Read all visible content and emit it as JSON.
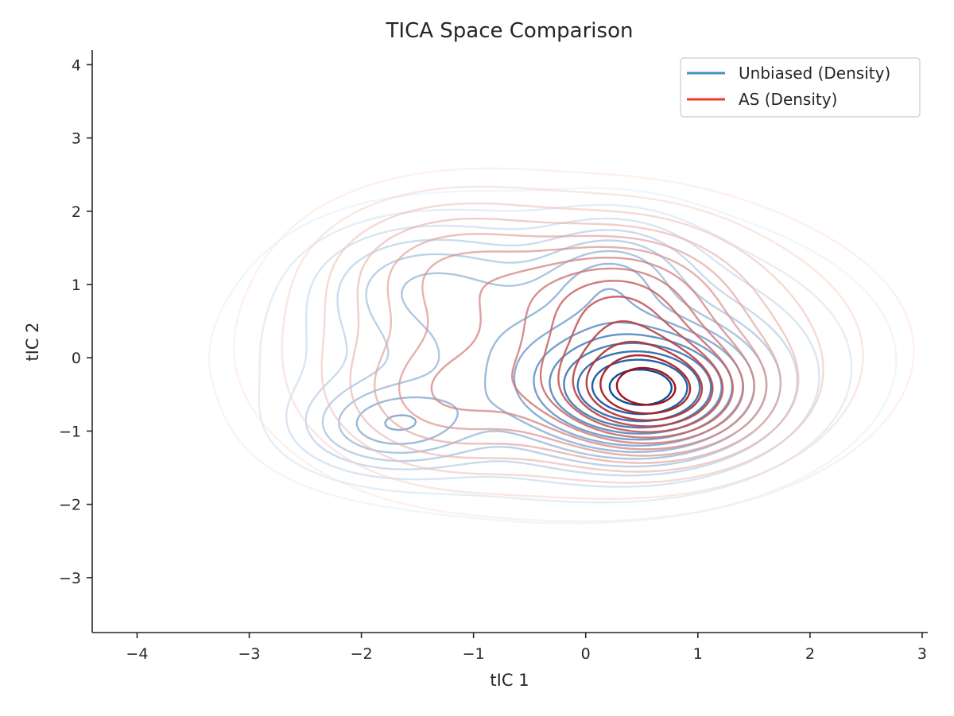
{
  "chart_data": {
    "type": "contour",
    "title": "TICA Space Comparison",
    "xlabel": "tIC 1",
    "ylabel": "tIC 2",
    "xlim": [
      -4.4,
      3.05
    ],
    "ylim": [
      -3.75,
      4.2
    ],
    "xticks": [
      -4,
      -3,
      -2,
      -1,
      0,
      1,
      2,
      3
    ],
    "yticks": [
      -3,
      -2,
      -1,
      0,
      1,
      2,
      3,
      4
    ],
    "xtick_labels": [
      "−4",
      "−3",
      "−2",
      "−1",
      "0",
      "1",
      "2",
      "3"
    ],
    "ytick_labels": [
      "−3",
      "−2",
      "−1",
      "0",
      "1",
      "2",
      "3",
      "4"
    ],
    "grid": false,
    "legend": {
      "location": "upper-right",
      "entries": [
        {
          "label": "Unbiased (Density)",
          "color": "#4292c6"
        },
        {
          "label": "AS (Density)",
          "color": "#ef3b2c"
        }
      ]
    },
    "series": [
      {
        "name": "Unbiased (Density)",
        "colormap": "Blues",
        "color_range": [
          "#e3eef9",
          "#08519c"
        ],
        "levels": 14,
        "components": [
          {
            "weight": 1.0,
            "mean": [
              0.55,
              -0.45
            ],
            "sd": [
              0.62,
              0.55
            ]
          },
          {
            "weight": 0.42,
            "mean": [
              -1.75,
              -0.95
            ],
            "sd": [
              0.5,
              0.38
            ]
          },
          {
            "weight": 0.3,
            "mean": [
              0.25,
              1.15
            ],
            "sd": [
              0.42,
              0.45
            ]
          },
          {
            "weight": 0.22,
            "mean": [
              -1.5,
              1.1
            ],
            "sd": [
              0.6,
              0.5
            ]
          },
          {
            "weight": 0.5,
            "mean": [
              -0.3,
              0.0
            ],
            "sd": [
              1.5,
              1.1
            ]
          }
        ]
      },
      {
        "name": "AS (Density)",
        "colormap": "Reds",
        "color_range": [
          "#fde5da",
          "#a50f15"
        ],
        "levels": 14,
        "components": [
          {
            "weight": 1.0,
            "mean": [
              0.6,
              -0.5
            ],
            "sd": [
              0.58,
              0.5
            ]
          },
          {
            "weight": 0.45,
            "mean": [
              0.35,
              0.75
            ],
            "sd": [
              0.55,
              0.6
            ]
          },
          {
            "weight": 0.25,
            "mean": [
              -1.3,
              -0.6
            ],
            "sd": [
              0.55,
              0.55
            ]
          },
          {
            "weight": 0.25,
            "mean": [
              -1.2,
              1.3
            ],
            "sd": [
              0.7,
              0.6
            ]
          },
          {
            "weight": 0.5,
            "mean": [
              -0.1,
              0.1
            ],
            "sd": [
              1.5,
              1.15
            ]
          }
        ]
      }
    ]
  }
}
